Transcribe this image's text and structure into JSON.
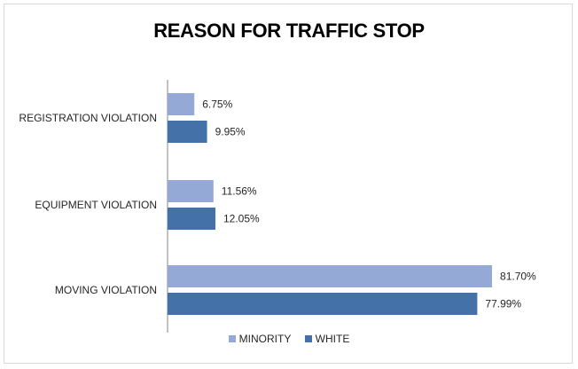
{
  "chart_data": {
    "type": "bar",
    "orientation": "horizontal",
    "title": "REASON FOR TRAFFIC STOP",
    "categories": [
      "REGISTRATION VIOLATION",
      "EQUIPMENT VIOLATION",
      "MOVING VIOLATION"
    ],
    "series": [
      {
        "name": "MINORITY",
        "color": "#95a9d6",
        "values": [
          6.75,
          11.56,
          81.7
        ],
        "labels": [
          "6.75%",
          "11.56%",
          "81.70%"
        ]
      },
      {
        "name": "WHITE",
        "color": "#4472a8",
        "values": [
          9.95,
          12.05,
          77.99
        ],
        "labels": [
          "9.95%",
          "12.05%",
          "77.99%"
        ]
      }
    ],
    "xlim": [
      0,
      90
    ],
    "grid": false,
    "legend_position": "bottom"
  }
}
